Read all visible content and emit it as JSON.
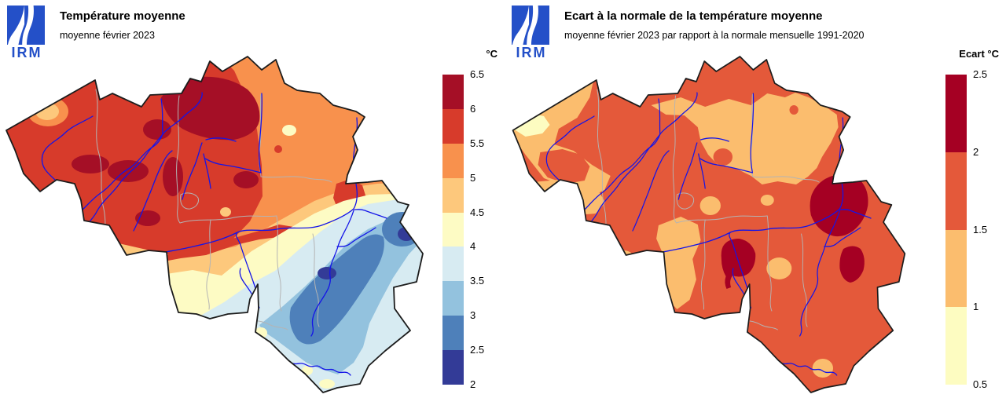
{
  "left_panel": {
    "logo_text": "IRM",
    "title": "Température moyenne",
    "subtitle": "moyenne février 2023",
    "legend_title": "°C",
    "legend_labels": [
      "6.5",
      "6",
      "5.5",
      "5",
      "4.5",
      "4",
      "3.5",
      "3",
      "2.5",
      "2"
    ],
    "legend_colors": [
      "#a50f26",
      "#d73b2b",
      "#f8914d",
      "#fdc87c",
      "#fdfbc4",
      "#d7ebf2",
      "#93c2de",
      "#4e80ba",
      "#333b97"
    ]
  },
  "right_panel": {
    "logo_text": "IRM",
    "title": "Ecart à la normale de la température moyenne",
    "subtitle": "moyenne février 2023 par rapport à la normale mensuelle 1991-2020",
    "legend_title": "Ecart °C",
    "legend_labels": [
      "2.5",
      "2",
      "1.5",
      "1",
      "0.5"
    ],
    "legend_colors": [
      "#a50023",
      "#e4593a",
      "#fbbd6e",
      "#fdfcc1"
    ]
  },
  "map_colors": {
    "outline": "#1c1c1c",
    "prov": "#b4b4b4",
    "river": "#1414e8",
    "logo": "#2450c8"
  },
  "chart_data": [
    {
      "type": "heatmap",
      "title": "Température moyenne",
      "subtitle": "moyenne février 2023",
      "region": "Belgique",
      "legend_title": "°C",
      "scale_ticks": [
        6.5,
        6,
        5.5,
        5,
        4.5,
        4,
        3.5,
        3,
        2.5,
        2
      ],
      "scale_colors": [
        "#a50f26",
        "#d73b2b",
        "#f8914d",
        "#fdc87c",
        "#fdfbc4",
        "#d7ebf2",
        "#93c2de",
        "#4e80ba",
        "#333b97"
      ],
      "spatial_pattern": "6-6.5 °C au nord-ouest (Flandre), 5-5.5 °C au centre et en Campine, 4-4.5 °C au sillon Sambre-et-Meuse sud, 2-3 °C sur les Ardennes et Hautes Fagnes au sud-est"
    },
    {
      "type": "heatmap",
      "title": "Ecart à la normale de la température moyenne",
      "subtitle": "moyenne février 2023 par rapport à la normale mensuelle 1991-2020",
      "region": "Belgique",
      "legend_title": "Ecart °C",
      "scale_ticks": [
        2.5,
        2,
        1.5,
        1,
        0.5
      ],
      "scale_colors": [
        "#a50023",
        "#e4593a",
        "#fbbd6e",
        "#fdfcc1"
      ],
      "spatial_pattern": "1.5-2 °C sur la majeure partie du pays, 2-2.5 °C sur l'est (Hautes Fagnes) et l'Entre-Sambre-et-Meuse, 1-1.5 °C sur l'ouest et le nord, 0.5-1 °C à la côte ouest"
    }
  ]
}
